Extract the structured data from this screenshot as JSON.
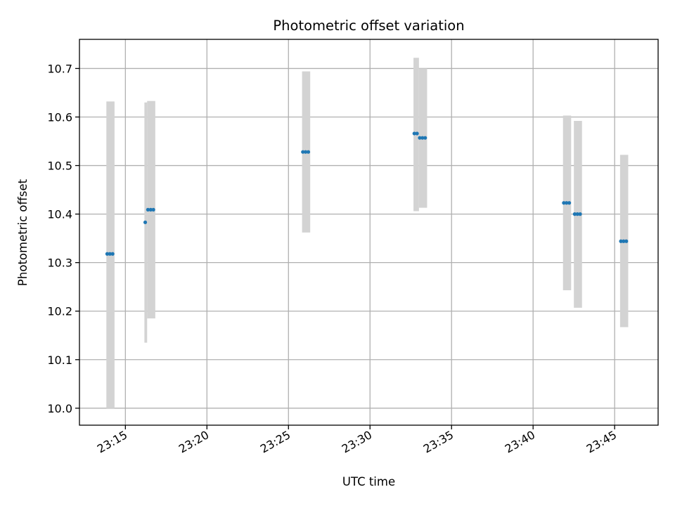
{
  "chart_data": {
    "type": "scatter",
    "title": "Photometric offset variation",
    "xlabel": "UTC time",
    "ylabel": "Photometric offset",
    "x_axis_type": "time",
    "xlim": [
      "23:12:11",
      "23:47:40"
    ],
    "ylim": [
      9.965,
      10.76
    ],
    "x_ticks": [
      "23:15",
      "23:20",
      "23:25",
      "23:30",
      "23:35",
      "23:40",
      "23:45"
    ],
    "y_ticks": [
      10.0,
      10.1,
      10.2,
      10.3,
      10.4,
      10.5,
      10.6,
      10.7
    ],
    "grid": true,
    "colors": {
      "points": "#1f77b4",
      "error_bars": "#d3d3d3",
      "grid": "#b0b0b0"
    },
    "error_bars": [
      {
        "x_start": "23:13:50",
        "x_end": "23:14:20",
        "y_low": 10.0,
        "y_high": 10.632
      },
      {
        "x_start": "23:16:10",
        "x_end": "23:16:20",
        "y_low": 10.135,
        "y_high": 10.63
      },
      {
        "x_start": "23:16:20",
        "x_end": "23:16:50",
        "y_low": 10.185,
        "y_high": 10.633
      },
      {
        "x_start": "23:25:50",
        "x_end": "23:26:20",
        "y_low": 10.362,
        "y_high": 10.694
      },
      {
        "x_start": "23:32:40",
        "x_end": "23:33:00",
        "y_low": 10.406,
        "y_high": 10.722
      },
      {
        "x_start": "23:33:00",
        "x_end": "23:33:30",
        "y_low": 10.413,
        "y_high": 10.7
      },
      {
        "x_start": "23:41:50",
        "x_end": "23:42:20",
        "y_low": 10.243,
        "y_high": 10.603
      },
      {
        "x_start": "23:42:30",
        "x_end": "23:43:00",
        "y_low": 10.207,
        "y_high": 10.592
      },
      {
        "x_start": "23:45:20",
        "x_end": "23:45:50",
        "y_low": 10.167,
        "y_high": 10.522
      }
    ],
    "series": [
      {
        "x": [
          "23:13:53",
          "23:14:03",
          "23:14:13",
          "23:16:13",
          "23:16:23",
          "23:16:33",
          "23:16:43",
          "23:25:53",
          "23:26:03",
          "23:26:13",
          "23:32:43",
          "23:32:53",
          "23:33:03",
          "23:33:13",
          "23:33:23",
          "23:41:53",
          "23:42:03",
          "23:42:13",
          "23:42:33",
          "23:42:43",
          "23:42:53",
          "23:45:23",
          "23:45:33",
          "23:45:43"
        ],
        "y": [
          10.318,
          10.318,
          10.318,
          10.383,
          10.409,
          10.409,
          10.409,
          10.528,
          10.528,
          10.528,
          10.566,
          10.566,
          10.557,
          10.557,
          10.557,
          10.423,
          10.423,
          10.423,
          10.4,
          10.4,
          10.4,
          10.344,
          10.344,
          10.344
        ]
      }
    ]
  }
}
